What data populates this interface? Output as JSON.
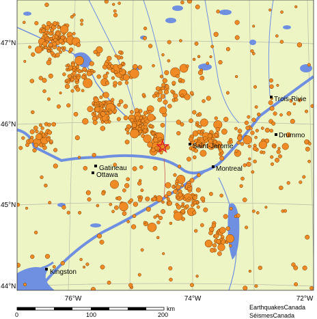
{
  "map": {
    "cities": [
      "Kingston",
      "Ottawa",
      "Gatineau",
      "Saint-Jerome",
      "Montreal",
      "Trois-Rivie",
      "Drummo"
    ],
    "latitude_labels": [
      "47°N",
      "46°N",
      "45°N",
      "44°N"
    ],
    "longitude_labels": [
      "76°W",
      "74°W",
      "72°W"
    ],
    "scale_labels": [
      "0",
      "100",
      "200",
      "km"
    ],
    "credits": [
      "EarthquakesCanada",
      "SéismesCanada"
    ]
  }
}
